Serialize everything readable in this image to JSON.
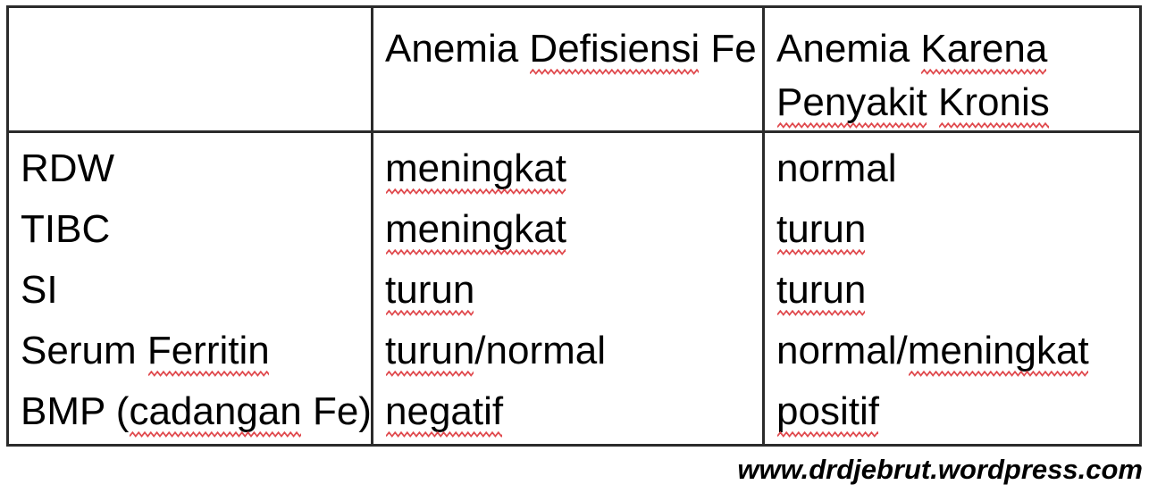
{
  "colors": {
    "border": "#2b2b2b",
    "squiggle": "#e04a4e",
    "text": "#000000",
    "background": "#ffffff"
  },
  "table": {
    "header": {
      "col1": [],
      "col2": [
        {
          "t": "Anemia ",
          "sq": false
        },
        {
          "t": "Defisiensi",
          "sq": true
        },
        {
          "t": " Fe",
          "sq": false
        }
      ],
      "col3": [
        [
          {
            "t": "Anemia ",
            "sq": false
          },
          {
            "t": "Karena",
            "sq": true
          }
        ],
        [
          {
            "t": "Penyakit",
            "sq": true
          },
          {
            "t": " ",
            "sq": false
          },
          {
            "t": "Kronis",
            "sq": true
          }
        ]
      ]
    },
    "rows": [
      {
        "label": [
          {
            "t": "RDW",
            "sq": false
          }
        ],
        "fe": [
          {
            "t": "meningkat",
            "sq": true
          }
        ],
        "kronis": [
          {
            "t": "normal",
            "sq": false
          }
        ]
      },
      {
        "label": [
          {
            "t": "TIBC",
            "sq": false
          }
        ],
        "fe": [
          {
            "t": "meningkat",
            "sq": true
          }
        ],
        "kronis": [
          {
            "t": "turun",
            "sq": true
          }
        ]
      },
      {
        "label": [
          {
            "t": "SI",
            "sq": false
          }
        ],
        "fe": [
          {
            "t": "turun",
            "sq": true
          }
        ],
        "kronis": [
          {
            "t": "turun",
            "sq": true
          }
        ]
      },
      {
        "label": [
          {
            "t": "Serum ",
            "sq": false
          },
          {
            "t": "Ferritin",
            "sq": true
          }
        ],
        "fe": [
          {
            "t": "turun",
            "sq": true
          },
          {
            "t": "/normal",
            "sq": false
          }
        ],
        "kronis": [
          {
            "t": "normal/",
            "sq": false
          },
          {
            "t": "meningkat",
            "sq": true
          }
        ]
      },
      {
        "label": [
          {
            "t": "BMP (",
            "sq": false
          },
          {
            "t": "cadangan",
            "sq": true
          },
          {
            "t": " Fe)",
            "sq": false
          }
        ],
        "fe": [
          {
            "t": "negatif",
            "sq": true
          }
        ],
        "kronis": [
          {
            "t": "positif",
            "sq": true
          }
        ]
      }
    ]
  },
  "watermark": "www.drdjebrut.wordpress.com"
}
